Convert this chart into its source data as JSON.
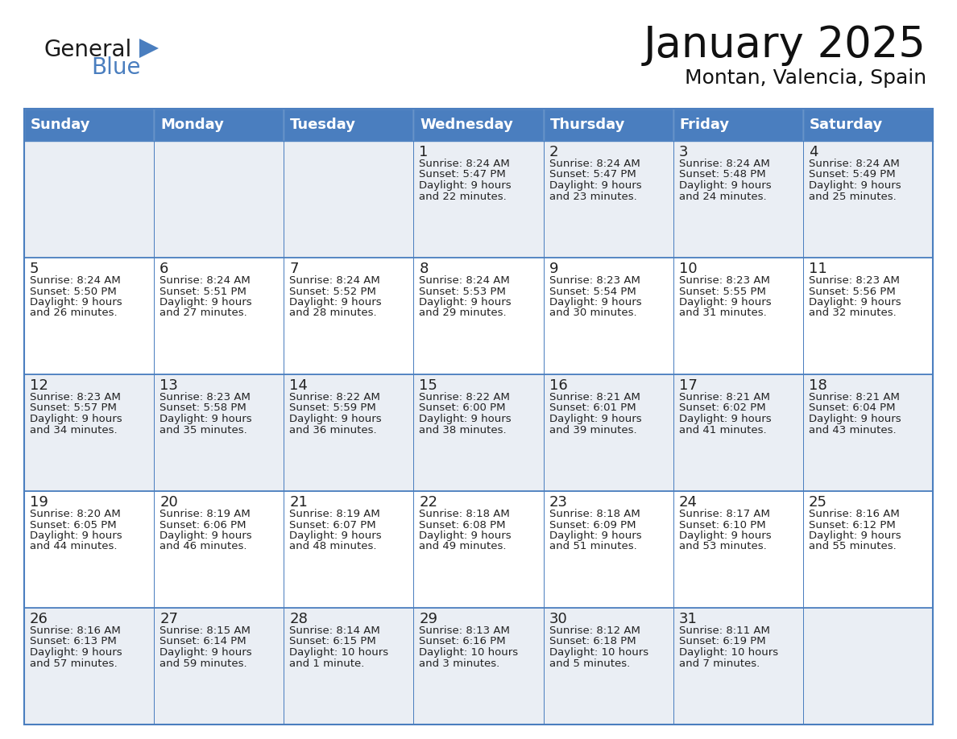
{
  "title": "January 2025",
  "subtitle": "Montan, Valencia, Spain",
  "header_color": "#4a7ebf",
  "header_text_color": "#FFFFFF",
  "row_bg_even": "#EAEEF4",
  "row_bg_odd": "#FFFFFF",
  "border_color": "#4a7ebf",
  "text_color": "#222222",
  "days_of_week": [
    "Sunday",
    "Monday",
    "Tuesday",
    "Wednesday",
    "Thursday",
    "Friday",
    "Saturday"
  ],
  "calendar_data": [
    [
      {
        "day": "",
        "sunrise": "",
        "sunset": "",
        "daylight": ""
      },
      {
        "day": "",
        "sunrise": "",
        "sunset": "",
        "daylight": ""
      },
      {
        "day": "",
        "sunrise": "",
        "sunset": "",
        "daylight": ""
      },
      {
        "day": "1",
        "sunrise": "8:24 AM",
        "sunset": "5:47 PM",
        "daylight": "9 hours\nand 22 minutes."
      },
      {
        "day": "2",
        "sunrise": "8:24 AM",
        "sunset": "5:47 PM",
        "daylight": "9 hours\nand 23 minutes."
      },
      {
        "day": "3",
        "sunrise": "8:24 AM",
        "sunset": "5:48 PM",
        "daylight": "9 hours\nand 24 minutes."
      },
      {
        "day": "4",
        "sunrise": "8:24 AM",
        "sunset": "5:49 PM",
        "daylight": "9 hours\nand 25 minutes."
      }
    ],
    [
      {
        "day": "5",
        "sunrise": "8:24 AM",
        "sunset": "5:50 PM",
        "daylight": "9 hours\nand 26 minutes."
      },
      {
        "day": "6",
        "sunrise": "8:24 AM",
        "sunset": "5:51 PM",
        "daylight": "9 hours\nand 27 minutes."
      },
      {
        "day": "7",
        "sunrise": "8:24 AM",
        "sunset": "5:52 PM",
        "daylight": "9 hours\nand 28 minutes."
      },
      {
        "day": "8",
        "sunrise": "8:24 AM",
        "sunset": "5:53 PM",
        "daylight": "9 hours\nand 29 minutes."
      },
      {
        "day": "9",
        "sunrise": "8:23 AM",
        "sunset": "5:54 PM",
        "daylight": "9 hours\nand 30 minutes."
      },
      {
        "day": "10",
        "sunrise": "8:23 AM",
        "sunset": "5:55 PM",
        "daylight": "9 hours\nand 31 minutes."
      },
      {
        "day": "11",
        "sunrise": "8:23 AM",
        "sunset": "5:56 PM",
        "daylight": "9 hours\nand 32 minutes."
      }
    ],
    [
      {
        "day": "12",
        "sunrise": "8:23 AM",
        "sunset": "5:57 PM",
        "daylight": "9 hours\nand 34 minutes."
      },
      {
        "day": "13",
        "sunrise": "8:23 AM",
        "sunset": "5:58 PM",
        "daylight": "9 hours\nand 35 minutes."
      },
      {
        "day": "14",
        "sunrise": "8:22 AM",
        "sunset": "5:59 PM",
        "daylight": "9 hours\nand 36 minutes."
      },
      {
        "day": "15",
        "sunrise": "8:22 AM",
        "sunset": "6:00 PM",
        "daylight": "9 hours\nand 38 minutes."
      },
      {
        "day": "16",
        "sunrise": "8:21 AM",
        "sunset": "6:01 PM",
        "daylight": "9 hours\nand 39 minutes."
      },
      {
        "day": "17",
        "sunrise": "8:21 AM",
        "sunset": "6:02 PM",
        "daylight": "9 hours\nand 41 minutes."
      },
      {
        "day": "18",
        "sunrise": "8:21 AM",
        "sunset": "6:04 PM",
        "daylight": "9 hours\nand 43 minutes."
      }
    ],
    [
      {
        "day": "19",
        "sunrise": "8:20 AM",
        "sunset": "6:05 PM",
        "daylight": "9 hours\nand 44 minutes."
      },
      {
        "day": "20",
        "sunrise": "8:19 AM",
        "sunset": "6:06 PM",
        "daylight": "9 hours\nand 46 minutes."
      },
      {
        "day": "21",
        "sunrise": "8:19 AM",
        "sunset": "6:07 PM",
        "daylight": "9 hours\nand 48 minutes."
      },
      {
        "day": "22",
        "sunrise": "8:18 AM",
        "sunset": "6:08 PM",
        "daylight": "9 hours\nand 49 minutes."
      },
      {
        "day": "23",
        "sunrise": "8:18 AM",
        "sunset": "6:09 PM",
        "daylight": "9 hours\nand 51 minutes."
      },
      {
        "day": "24",
        "sunrise": "8:17 AM",
        "sunset": "6:10 PM",
        "daylight": "9 hours\nand 53 minutes."
      },
      {
        "day": "25",
        "sunrise": "8:16 AM",
        "sunset": "6:12 PM",
        "daylight": "9 hours\nand 55 minutes."
      }
    ],
    [
      {
        "day": "26",
        "sunrise": "8:16 AM",
        "sunset": "6:13 PM",
        "daylight": "9 hours\nand 57 minutes."
      },
      {
        "day": "27",
        "sunrise": "8:15 AM",
        "sunset": "6:14 PM",
        "daylight": "9 hours\nand 59 minutes."
      },
      {
        "day": "28",
        "sunrise": "8:14 AM",
        "sunset": "6:15 PM",
        "daylight": "10 hours\nand 1 minute."
      },
      {
        "day": "29",
        "sunrise": "8:13 AM",
        "sunset": "6:16 PM",
        "daylight": "10 hours\nand 3 minutes."
      },
      {
        "day": "30",
        "sunrise": "8:12 AM",
        "sunset": "6:18 PM",
        "daylight": "10 hours\nand 5 minutes."
      },
      {
        "day": "31",
        "sunrise": "8:11 AM",
        "sunset": "6:19 PM",
        "daylight": "10 hours\nand 7 minutes."
      },
      {
        "day": "",
        "sunrise": "",
        "sunset": "",
        "daylight": ""
      }
    ]
  ],
  "logo_text1": "General",
  "logo_text2": "Blue",
  "logo_color1": "#1a1a1a",
  "logo_color2": "#4a7ebf",
  "logo_triangle_color": "#4a7ebf",
  "title_fontsize": 38,
  "subtitle_fontsize": 18,
  "header_fontsize": 13,
  "day_num_fontsize": 13,
  "cell_text_fontsize": 9.5
}
